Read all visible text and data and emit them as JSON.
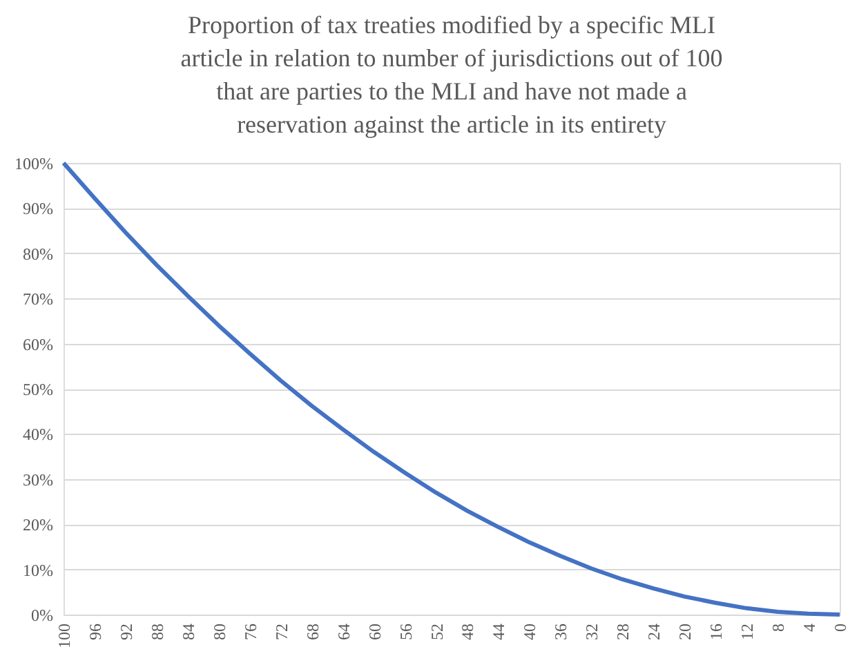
{
  "chart_data": {
    "type": "line",
    "title": "Proportion of tax treaties modified by a specific MLI article in relation to number of jurisdictions out of 100 that are parties to the MLI and have not made a reservation against the article in its entirety",
    "x": [
      100,
      96,
      92,
      88,
      84,
      80,
      76,
      72,
      68,
      64,
      60,
      56,
      52,
      48,
      44,
      40,
      36,
      32,
      28,
      24,
      20,
      16,
      12,
      8,
      4,
      0
    ],
    "series": [
      {
        "color": "#4472c4",
        "values": [
          100,
          92.2,
          84.6,
          77.4,
          70.6,
          64,
          57.8,
          51.8,
          46.2,
          41,
          36,
          31.4,
          27,
          23,
          19.4,
          16,
          13,
          10.2,
          7.8,
          5.8,
          4,
          2.6,
          1.4,
          0.6,
          0.2,
          0
        ]
      }
    ],
    "xlim": [
      100,
      0
    ],
    "xticks": [
      100,
      96,
      92,
      88,
      84,
      80,
      76,
      72,
      68,
      64,
      60,
      56,
      52,
      48,
      44,
      40,
      36,
      32,
      28,
      24,
      20,
      16,
      12,
      8,
      4,
      0
    ],
    "ylim": [
      0,
      100
    ],
    "yticks": [
      {
        "value": 0,
        "label": "0%"
      },
      {
        "value": 10,
        "label": "10%"
      },
      {
        "value": 20,
        "label": "20%"
      },
      {
        "value": 30,
        "label": "30%"
      },
      {
        "value": 40,
        "label": "40%"
      },
      {
        "value": 50,
        "label": "50%"
      },
      {
        "value": 60,
        "label": "60%"
      },
      {
        "value": 70,
        "label": "70%"
      },
      {
        "value": 80,
        "label": "80%"
      },
      {
        "value": 90,
        "label": "90%"
      },
      {
        "value": 100,
        "label": "100%"
      }
    ],
    "grid": "y",
    "marker": "none",
    "line_style": "solid"
  }
}
